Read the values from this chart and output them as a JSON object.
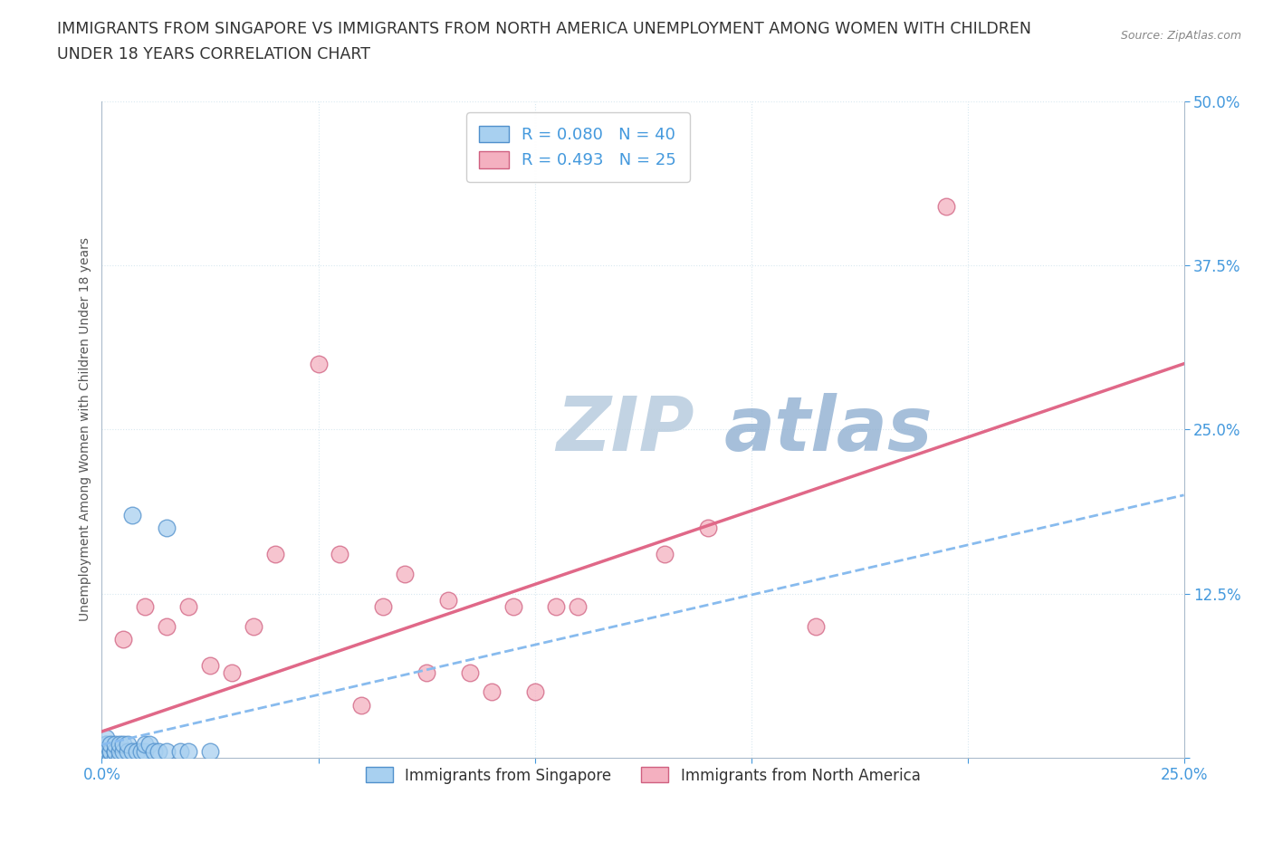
{
  "title_line1": "IMMIGRANTS FROM SINGAPORE VS IMMIGRANTS FROM NORTH AMERICA UNEMPLOYMENT AMONG WOMEN WITH CHILDREN",
  "title_line2": "UNDER 18 YEARS CORRELATION CHART",
  "source": "Source: ZipAtlas.com",
  "ylabel": "Unemployment Among Women with Children Under 18 years",
  "xlim": [
    0.0,
    0.25
  ],
  "ylim": [
    0.0,
    0.5
  ],
  "xticks": [
    0.0,
    0.05,
    0.1,
    0.15,
    0.2,
    0.25
  ],
  "xticklabels": [
    "0.0%",
    "",
    "",
    "",
    "",
    "25.0%"
  ],
  "yticks": [
    0.0,
    0.125,
    0.25,
    0.375,
    0.5
  ],
  "yticklabels": [
    "",
    "12.5%",
    "25.0%",
    "37.5%",
    "50.0%"
  ],
  "legend_blue_label": "R = 0.080   N = 40",
  "legend_pink_label": "R = 0.493   N = 25",
  "legend_bottom_blue": "Immigrants from Singapore",
  "legend_bottom_pink": "Immigrants from North America",
  "blue_color": "#A8D0F0",
  "pink_color": "#F4B0C0",
  "blue_edge": "#5090CC",
  "pink_edge": "#D06080",
  "trend_blue_color": "#88BBEE",
  "trend_pink_color": "#E06888",
  "watermark_color": "#C8DCF0",
  "background_color": "#FFFFFF",
  "grid_color": "#D8E8F0",
  "blue_x": [
    0.001,
    0.001,
    0.001,
    0.001,
    0.001,
    0.001,
    0.001,
    0.001,
    0.001,
    0.001,
    0.002,
    0.002,
    0.002,
    0.002,
    0.002,
    0.003,
    0.003,
    0.003,
    0.003,
    0.004,
    0.004,
    0.004,
    0.005,
    0.005,
    0.006,
    0.006,
    0.007,
    0.007,
    0.008,
    0.009,
    0.01,
    0.01,
    0.011,
    0.012,
    0.013,
    0.015,
    0.015,
    0.018,
    0.02,
    0.025
  ],
  "blue_y": [
    0.0,
    0.0,
    0.0,
    0.0,
    0.005,
    0.005,
    0.005,
    0.01,
    0.01,
    0.015,
    0.0,
    0.0,
    0.005,
    0.005,
    0.01,
    0.0,
    0.005,
    0.005,
    0.01,
    0.0,
    0.005,
    0.01,
    0.005,
    0.01,
    0.005,
    0.01,
    0.005,
    0.185,
    0.005,
    0.005,
    0.005,
    0.01,
    0.01,
    0.005,
    0.005,
    0.005,
    0.175,
    0.005,
    0.005,
    0.005
  ],
  "pink_x": [
    0.005,
    0.01,
    0.015,
    0.02,
    0.025,
    0.03,
    0.035,
    0.04,
    0.05,
    0.055,
    0.06,
    0.065,
    0.07,
    0.075,
    0.08,
    0.085,
    0.09,
    0.095,
    0.1,
    0.105,
    0.11,
    0.13,
    0.14,
    0.165,
    0.195
  ],
  "pink_y": [
    0.09,
    0.115,
    0.1,
    0.115,
    0.07,
    0.065,
    0.1,
    0.155,
    0.3,
    0.155,
    0.04,
    0.115,
    0.14,
    0.065,
    0.12,
    0.065,
    0.05,
    0.115,
    0.05,
    0.115,
    0.115,
    0.155,
    0.175,
    0.1,
    0.42
  ]
}
